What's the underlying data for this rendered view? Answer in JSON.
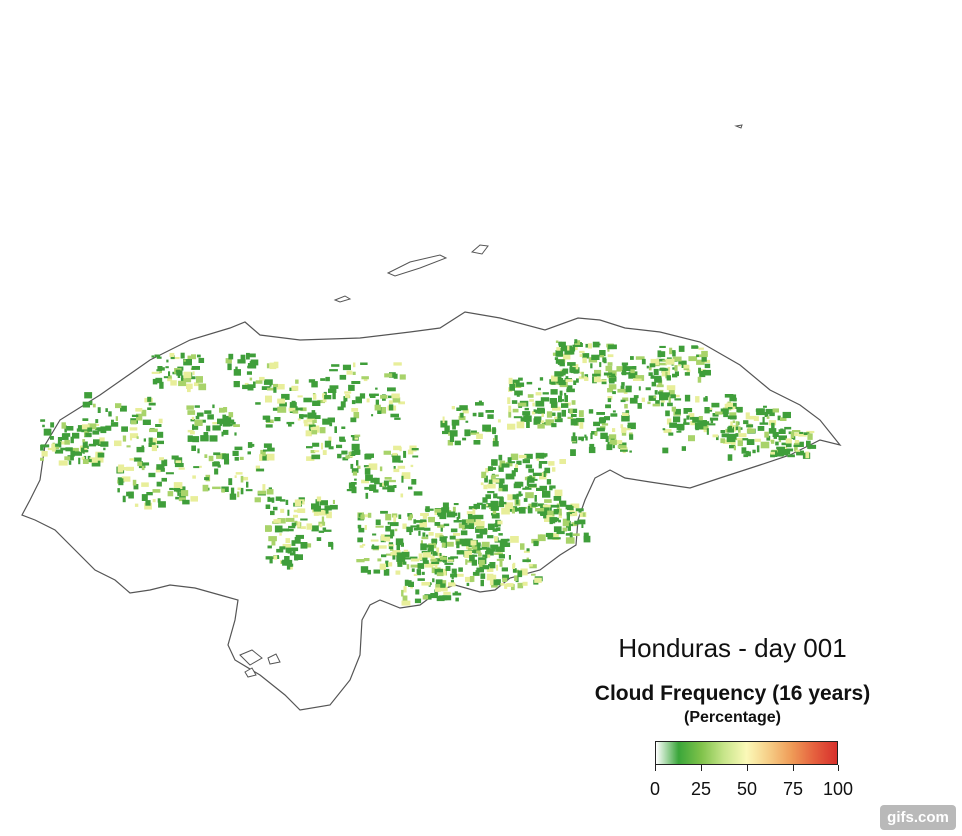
{
  "title": "Honduras - day 001",
  "legend": {
    "title": "Cloud Frequency (16 years)",
    "subtitle": "(Percentage)",
    "ticks": [
      "0",
      "25",
      "50",
      "75",
      "100"
    ],
    "colors": [
      "#ffffff",
      "#3aa63a",
      "#7fc24a",
      "#c7e58a",
      "#fbf9b8",
      "#f6cd86",
      "#ef9b57",
      "#e5603e",
      "#d7302c"
    ]
  },
  "watermark": "gifs.com",
  "map": {
    "country": "Honduras",
    "outline_color": "#555555",
    "cloud_color_low": "#3f9e3a",
    "cloud_color_mid": "#a8d36a",
    "cloud_color_high": "#e8ee9a"
  }
}
